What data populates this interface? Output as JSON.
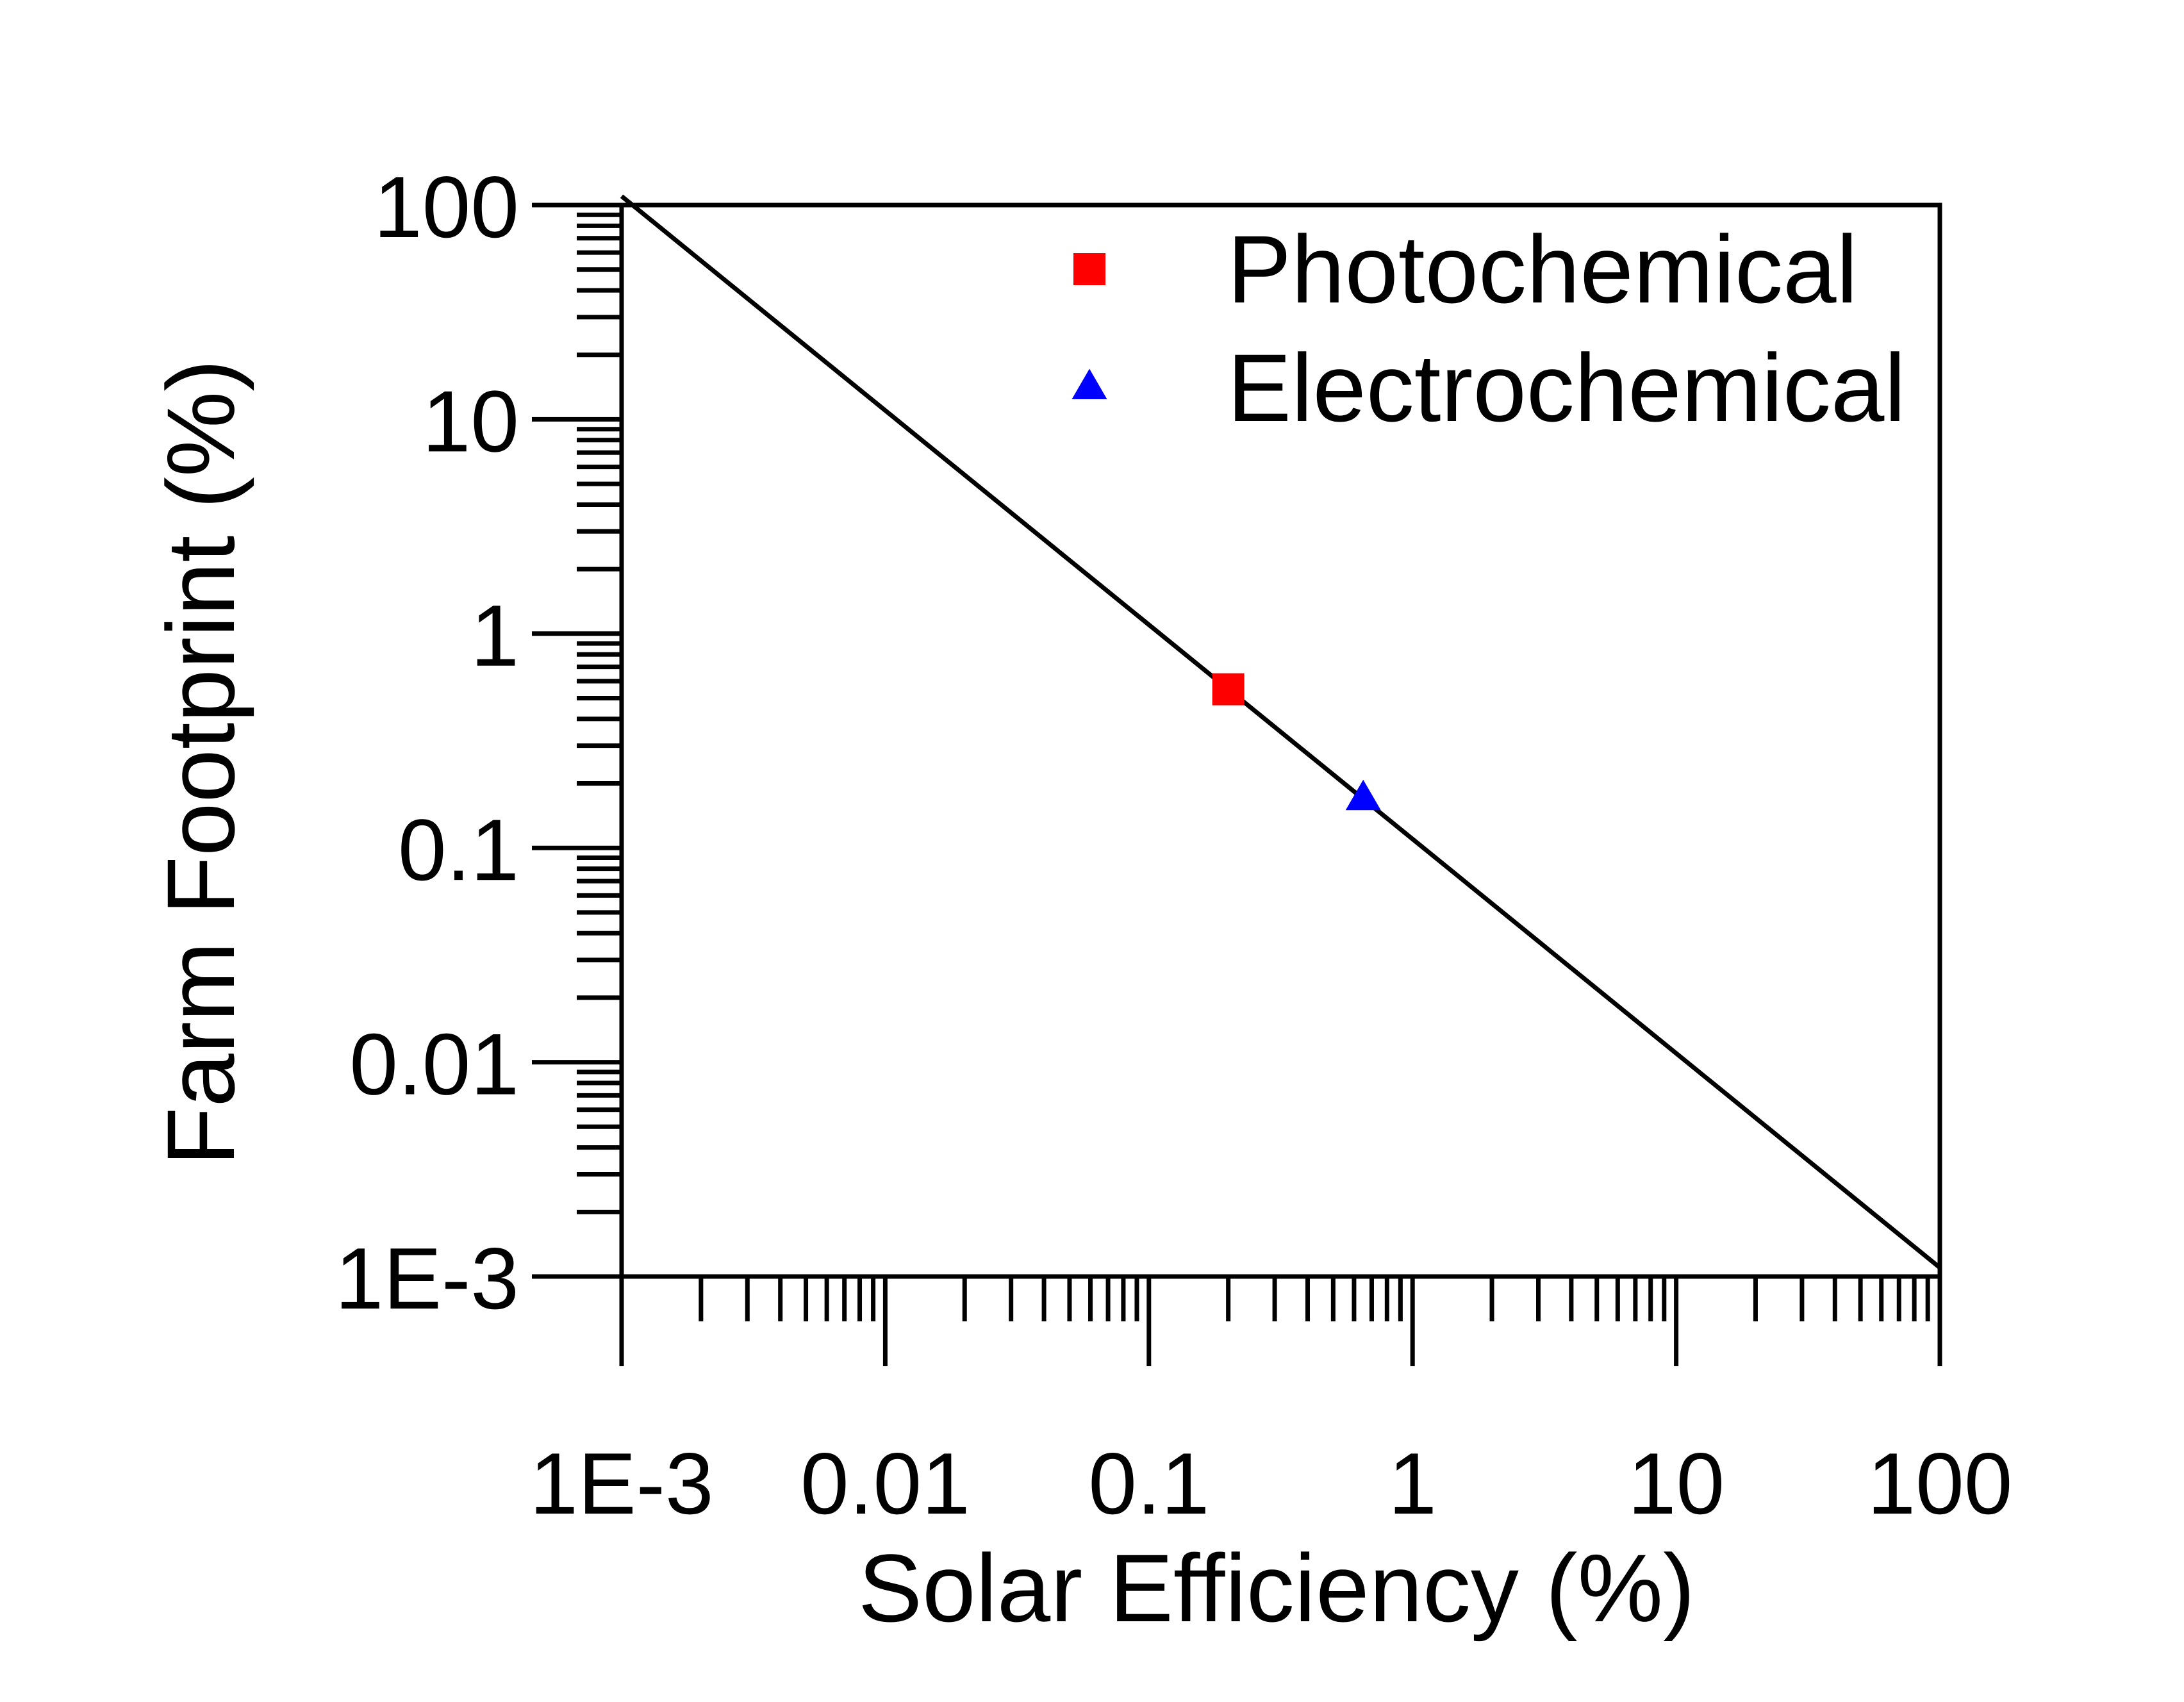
{
  "chart_data": {
    "type": "scatter",
    "x_scale": "log",
    "y_scale": "log",
    "xlabel": "Solar Efficiency (%)",
    "ylabel": "Farm Footprint (%)",
    "xlim": [
      0.001,
      100
    ],
    "ylim": [
      0.001,
      100
    ],
    "x_ticks": [
      {
        "value": 0.001,
        "label": "1E-3"
      },
      {
        "value": 0.01,
        "label": "0.01"
      },
      {
        "value": 0.1,
        "label": "0.1"
      },
      {
        "value": 1,
        "label": "1"
      },
      {
        "value": 10,
        "label": "10"
      },
      {
        "value": 100,
        "label": "100"
      }
    ],
    "y_ticks": [
      {
        "value": 100,
        "label": "100"
      },
      {
        "value": 10,
        "label": "10"
      },
      {
        "value": 1,
        "label": "1"
      },
      {
        "value": 0.1,
        "label": "0.1"
      },
      {
        "value": 0.01,
        "label": "0.01"
      },
      {
        "value": 0.001,
        "label": "1E-3"
      }
    ],
    "grid": false,
    "legend_position": "top-right",
    "line": {
      "color": "#000000",
      "x": [
        0.001,
        100
      ],
      "y": [
        110,
        0.0011
      ]
    },
    "series": [
      {
        "name": "Photochemical",
        "marker": "square",
        "color": "#ff0000",
        "x": [
          0.2
        ],
        "y": [
          0.55
        ]
      },
      {
        "name": "Electrochemical",
        "marker": "triangle",
        "color": "#0000ff",
        "x": [
          0.65
        ],
        "y": [
          0.17
        ]
      }
    ]
  }
}
